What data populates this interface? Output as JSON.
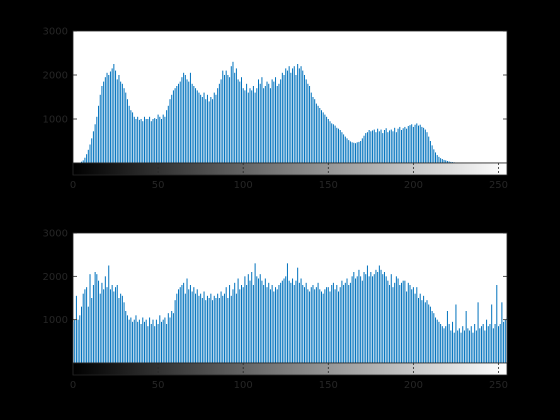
{
  "figure": {
    "background": "#000000"
  },
  "colors": {
    "bar": "#0072BD",
    "axes_bg": "#FFFFFF",
    "axis": "#262626"
  },
  "chart_data": [
    {
      "type": "bar",
      "title": "",
      "xlabel": "",
      "ylabel": "",
      "xlim": [
        0,
        255
      ],
      "ylim": [
        0,
        3000
      ],
      "xticks": [
        0,
        50,
        100,
        150,
        200,
        250
      ],
      "yticks": [
        1000,
        2000,
        3000
      ],
      "colorbar": "grayscale 0 to 255",
      "series_by_range": [
        {
          "from": 0,
          "to": 4,
          "values": [
            0,
            0,
            0,
            0,
            0
          ]
        },
        {
          "from": 5,
          "to": 14,
          "values": [
            30,
            60,
            120,
            200,
            300,
            420,
            560,
            720,
            880,
            1050
          ]
        },
        {
          "from": 15,
          "to": 29,
          "values": [
            1300,
            1550,
            1750,
            1850,
            1950,
            2050,
            2000,
            2080,
            2150,
            2250,
            2100,
            1900,
            2000,
            1850,
            1800
          ]
        },
        {
          "from": 30,
          "to": 44,
          "values": [
            1700,
            1600,
            1450,
            1300,
            1200,
            1150,
            1050,
            1000,
            1050,
            980,
            1000,
            950,
            1050,
            1000,
            1000
          ]
        },
        {
          "from": 45,
          "to": 59,
          "values": [
            1050,
            950,
            1000,
            1020,
            1000,
            1100,
            1050,
            1000,
            1100,
            1050,
            1200,
            1300,
            1450,
            1550,
            1650
          ]
        },
        {
          "from": 60,
          "to": 74,
          "values": [
            1700,
            1750,
            1800,
            1850,
            1950,
            2050,
            2000,
            1900,
            1850,
            2050,
            1800,
            1750,
            1700,
            1650,
            1600
          ]
        },
        {
          "from": 75,
          "to": 89,
          "values": [
            1550,
            1500,
            1600,
            1450,
            1550,
            1400,
            1500,
            1450,
            1600,
            1550,
            1700,
            1800,
            1900,
            2100,
            2000
          ]
        },
        {
          "from": 90,
          "to": 104,
          "values": [
            2100,
            2000,
            1950,
            2200,
            2300,
            2050,
            2150,
            1900,
            1850,
            1950,
            1700,
            1650,
            1800,
            1600,
            1700
          ]
        },
        {
          "from": 105,
          "to": 119,
          "values": [
            1650,
            1750,
            1600,
            1700,
            1900,
            1800,
            1950,
            1700,
            1750,
            1850,
            1800,
            1700,
            1900,
            1850,
            1950
          ]
        },
        {
          "from": 120,
          "to": 134,
          "values": [
            1750,
            1800,
            1900,
            2050,
            2000,
            2150,
            2100,
            2200,
            2050,
            2150,
            2200,
            2000,
            2250,
            2150,
            2200
          ]
        },
        {
          "from": 135,
          "to": 149,
          "values": [
            2100,
            2000,
            1900,
            1800,
            1750,
            1600,
            1500,
            1450,
            1350,
            1300,
            1250,
            1200,
            1150,
            1100,
            1050
          ]
        },
        {
          "from": 150,
          "to": 164,
          "values": [
            1000,
            950,
            900,
            880,
            850,
            800,
            780,
            750,
            700,
            650,
            600,
            560,
            520,
            490,
            470
          ]
        },
        {
          "from": 165,
          "to": 179,
          "values": [
            460,
            450,
            470,
            480,
            500,
            560,
            620,
            680,
            700,
            750,
            720,
            740,
            760,
            700,
            780
          ]
        },
        {
          "from": 180,
          "to": 194,
          "values": [
            720,
            760,
            680,
            750,
            790,
            700,
            740,
            760,
            720,
            800,
            700,
            780,
            820,
            750,
            790
          ]
        },
        {
          "from": 195,
          "to": 209,
          "values": [
            820,
            780,
            840,
            860,
            880,
            820,
            870,
            900,
            850,
            870,
            820,
            800,
            760,
            700,
            600
          ]
        },
        {
          "from": 210,
          "to": 224,
          "values": [
            500,
            400,
            310,
            240,
            180,
            140,
            110,
            90,
            70,
            60,
            45,
            35,
            25,
            20,
            15
          ]
        },
        {
          "from": 225,
          "to": 255,
          "values": [
            10,
            10,
            5,
            5,
            5,
            0,
            0,
            0,
            0,
            0,
            0,
            0,
            0,
            0,
            0,
            0,
            0,
            0,
            0,
            0,
            0,
            0,
            0,
            0,
            0,
            0,
            0,
            0,
            0,
            0,
            0
          ]
        }
      ]
    },
    {
      "type": "bar",
      "title": "",
      "xlabel": "",
      "ylabel": "",
      "xlim": [
        0,
        255
      ],
      "ylim": [
        0,
        3000
      ],
      "xticks": [
        0,
        50,
        100,
        150,
        200,
        250
      ],
      "yticks": [
        1000,
        2000,
        3000
      ],
      "colorbar": "grayscale 0 to 255",
      "series_by_range": [
        {
          "from": 0,
          "to": 14,
          "values": [
            950,
            1000,
            1550,
            1000,
            1100,
            1300,
            1600,
            1700,
            1750,
            1300,
            2050,
            1500,
            1800,
            2100,
            2050
          ]
        },
        {
          "from": 15,
          "to": 29,
          "values": [
            1900,
            1600,
            1850,
            1700,
            2000,
            1750,
            2250,
            1700,
            1800,
            1650,
            1750,
            1800,
            1500,
            1600,
            1550
          ]
        },
        {
          "from": 30,
          "to": 44,
          "values": [
            1400,
            1200,
            1100,
            1000,
            1050,
            950,
            1000,
            1100,
            950,
            1000,
            900,
            1050,
            950,
            1000,
            850
          ]
        },
        {
          "from": 45,
          "to": 59,
          "values": [
            1050,
            900,
            1000,
            850,
            1000,
            900,
            1100,
            950,
            1000,
            1050,
            900,
            1150,
            1050,
            1200,
            1150
          ]
        },
        {
          "from": 60,
          "to": 74,
          "values": [
            1450,
            1600,
            1700,
            1750,
            1800,
            1850,
            1600,
            1950,
            1700,
            1800,
            1650,
            1750,
            1600,
            1700,
            1550
          ]
        },
        {
          "from": 75,
          "to": 89,
          "values": [
            1600,
            1500,
            1650,
            1450,
            1550,
            1500,
            1600,
            1450,
            1550,
            1500,
            1600,
            1500,
            1650,
            1550,
            1600
          ]
        },
        {
          "from": 90,
          "to": 104,
          "values": [
            1750,
            1500,
            1800,
            1550,
            1700,
            1850,
            1600,
            1950,
            1700,
            1800,
            1750,
            2000,
            1800,
            2050,
            1900
          ]
        },
        {
          "from": 105,
          "to": 119,
          "values": [
            2100,
            1800,
            2300,
            2000,
            1950,
            2050,
            1900,
            1800,
            1950,
            1750,
            1850,
            1700,
            1800,
            1650,
            1750
          ]
        },
        {
          "from": 120,
          "to": 134,
          "values": [
            1700,
            1800,
            1850,
            1900,
            1950,
            2000,
            2300,
            1900,
            1850,
            1950,
            1800,
            1900,
            2200,
            1850,
            1950
          ]
        },
        {
          "from": 135,
          "to": 149,
          "values": [
            1800,
            1750,
            1850,
            1700,
            1650,
            1750,
            1800,
            1700,
            1750,
            1850,
            1700,
            1650,
            1600,
            1700,
            1750
          ]
        },
        {
          "from": 150,
          "to": 164,
          "values": [
            1750,
            1650,
            1800,
            1850,
            1700,
            1800,
            1650,
            1750,
            1900,
            1800,
            1850,
            1950,
            1800,
            1850,
            2000
          ]
        },
        {
          "from": 165,
          "to": 179,
          "values": [
            2100,
            1950,
            2000,
            2150,
            2000,
            1900,
            2100,
            2050,
            2250,
            2000,
            2100,
            2000,
            2050,
            2150,
            2100
          ]
        },
        {
          "from": 180,
          "to": 194,
          "values": [
            2250,
            2150,
            2050,
            2100,
            2000,
            1900,
            1800,
            2050,
            1750,
            1850,
            2000,
            1950,
            1800,
            1850,
            1900
          ]
        },
        {
          "from": 195,
          "to": 209,
          "values": [
            1900,
            1650,
            1850,
            1800,
            1700,
            1750,
            1600,
            1750,
            1500,
            1600,
            1450,
            1550,
            1400,
            1450,
            1350
          ]
        },
        {
          "from": 210,
          "to": 224,
          "values": [
            1300,
            1200,
            1150,
            1050,
            1000,
            950,
            900,
            850,
            800,
            850,
            1200,
            900,
            750,
            950,
            700
          ]
        },
        {
          "from": 225,
          "to": 239,
          "values": [
            1350,
            750,
            800,
            700,
            850,
            750,
            1200,
            800,
            750,
            850,
            700,
            900,
            750,
            1400,
            800
          ]
        },
        {
          "from": 240,
          "to": 255,
          "values": [
            850,
            900,
            750,
            1000,
            850,
            900,
            1350,
            800,
            900,
            1800,
            850,
            900,
            1400,
            950,
            1000,
            1050
          ]
        }
      ]
    }
  ]
}
